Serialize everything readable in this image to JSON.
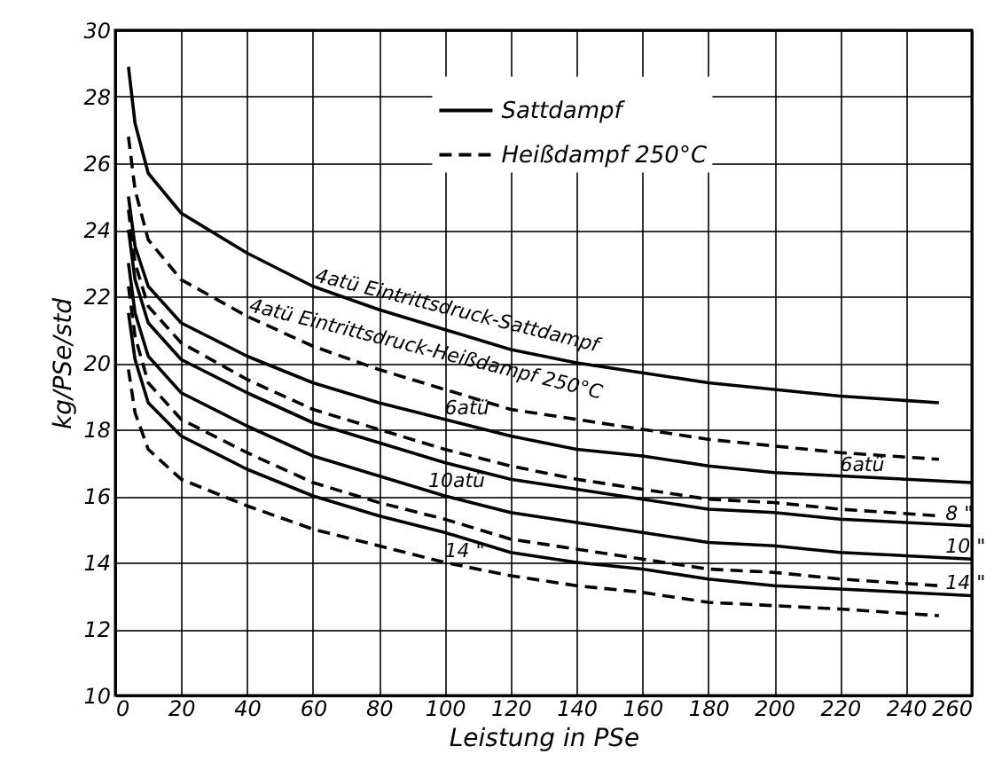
{
  "chart_data": {
    "type": "line",
    "xlabel": "Leistung in PSe",
    "ylabel": "kg/PSe/std",
    "xlim": [
      0,
      260
    ],
    "xticks": [
      0,
      20,
      40,
      60,
      80,
      100,
      120,
      140,
      160,
      180,
      200,
      220,
      240,
      260
    ],
    "ylim": [
      10,
      30
    ],
    "yticks": [
      10,
      12,
      14,
      16,
      18,
      20,
      22,
      24,
      26,
      28,
      30
    ],
    "grid": true,
    "legend": "top right",
    "series": [
      {
        "name": "Sattdampf",
        "color": "#000000",
        "line_style": "solid",
        "x": [
          4,
          6,
          10,
          20,
          40,
          60,
          80,
          100,
          120,
          140,
          160,
          180,
          200,
          220,
          250
        ],
        "values": [
          28.9,
          27.2,
          25.7,
          24.5,
          23.3,
          22.3,
          21.6,
          21.0,
          20.4,
          20.0,
          19.7,
          19.4,
          19.2,
          19.0,
          18.8
        ]
      },
      {
        "name": "Heißdampf 250°C",
        "color": "#000000",
        "line_style": "dashed",
        "x": [
          4,
          6,
          10,
          20,
          40,
          60,
          80,
          100,
          120,
          140,
          160,
          180,
          200,
          220,
          250
        ],
        "values": [
          26.8,
          25.2,
          23.7,
          22.5,
          21.4,
          20.5,
          19.8,
          19.2,
          18.6,
          18.3,
          18.0,
          17.7,
          17.5,
          17.3,
          17.1
        ]
      },
      {
        "color": "#000000",
        "line_style": "solid",
        "x": [
          4,
          6,
          10,
          20,
          40,
          60,
          80,
          100,
          120,
          140,
          160,
          180,
          200,
          220,
          260
        ],
        "values": [
          25.0,
          23.5,
          22.3,
          21.2,
          20.2,
          19.4,
          18.8,
          18.3,
          17.8,
          17.4,
          17.2,
          16.9,
          16.7,
          16.6,
          16.4
        ]
      },
      {
        "color": "#000000",
        "line_style": "dashed",
        "x": [
          4,
          6,
          10,
          20,
          40,
          60,
          80,
          100,
          120,
          140,
          160,
          180,
          200,
          220,
          250
        ],
        "values": [
          24.6,
          23.0,
          21.7,
          20.6,
          19.5,
          18.6,
          18.0,
          17.4,
          16.9,
          16.5,
          16.2,
          15.9,
          15.8,
          15.6,
          15.4
        ]
      },
      {
        "color": "#000000",
        "line_style": "solid",
        "x": [
          4,
          6,
          10,
          20,
          40,
          60,
          80,
          100,
          120,
          140,
          160,
          180,
          200,
          220,
          260
        ],
        "values": [
          24.0,
          22.5,
          21.2,
          20.1,
          19.1,
          18.2,
          17.6,
          17.0,
          16.5,
          16.2,
          15.9,
          15.6,
          15.5,
          15.3,
          15.1
        ]
      },
      {
        "color": "#000000",
        "line_style": "solid",
        "x": [
          4,
          6,
          10,
          20,
          40,
          60,
          80,
          100,
          120,
          140,
          160,
          180,
          200,
          220,
          260
        ],
        "values": [
          23.0,
          21.5,
          20.2,
          19.1,
          18.1,
          17.2,
          16.6,
          16.0,
          15.5,
          15.2,
          14.9,
          14.6,
          14.5,
          14.3,
          14.1
        ]
      },
      {
        "color": "#000000",
        "line_style": "dashed",
        "x": [
          4,
          6,
          10,
          20,
          40,
          60,
          80,
          100,
          120,
          140,
          160,
          180,
          200,
          220,
          250
        ],
        "values": [
          22.3,
          20.8,
          19.4,
          18.3,
          17.3,
          16.4,
          15.8,
          15.3,
          14.7,
          14.4,
          14.1,
          13.8,
          13.7,
          13.5,
          13.3
        ]
      },
      {
        "color": "#000000",
        "line_style": "solid",
        "x": [
          4,
          6,
          10,
          20,
          40,
          60,
          80,
          100,
          120,
          140,
          160,
          180,
          200,
          220,
          260
        ],
        "values": [
          21.5,
          20.1,
          18.8,
          17.8,
          16.8,
          16.0,
          15.4,
          14.9,
          14.3,
          14.0,
          13.8,
          13.5,
          13.3,
          13.2,
          13.0
        ]
      },
      {
        "color": "#000000",
        "line_style": "dashed",
        "x": [
          4,
          6,
          10,
          20,
          40,
          60,
          80,
          100,
          120,
          140,
          160,
          180,
          200,
          220,
          250
        ],
        "values": [
          19.8,
          18.5,
          17.4,
          16.5,
          15.7,
          15.0,
          14.5,
          14.0,
          13.6,
          13.3,
          13.1,
          12.8,
          12.7,
          12.6,
          12.4
        ]
      }
    ],
    "annotations": [
      {
        "text": "4atü Eintrittsdruck-Sattdampf",
        "x": 60,
        "y": 22.3
      },
      {
        "text": "4atü Eintrittsdruck-Heißdampf 250°C",
        "x": 40,
        "y": 21.4
      },
      {
        "text": "6atü",
        "x": 100,
        "y": 18.3
      },
      {
        "text": "6atü",
        "x": 220,
        "y": 16.6
      },
      {
        "text": "8 \"",
        "x": 252,
        "y": 15.13
      },
      {
        "text": "10 \"",
        "x": 252,
        "y": 14.13
      },
      {
        "text": "14 \"",
        "x": 252,
        "y": 13.03
      },
      {
        "text": "10atü",
        "x": 95,
        "y": 16.1
      },
      {
        "text": "14 \"",
        "x": 100,
        "y": 14.0
      }
    ]
  }
}
